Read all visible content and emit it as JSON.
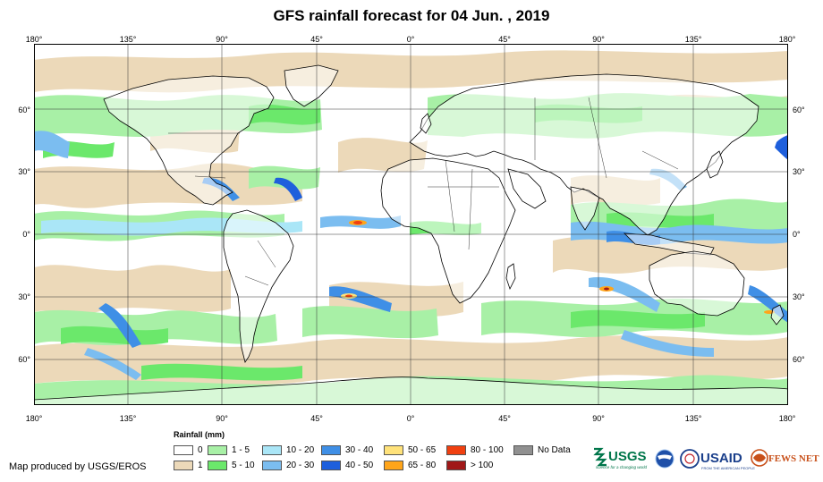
{
  "title": "GFS rainfall forecast for 04 Jun. , 2019",
  "axis": {
    "lon_labels": [
      "180°",
      "135°",
      "90°",
      "45°",
      "0°",
      "45°",
      "90°",
      "135°",
      "180°"
    ],
    "lat_labels": [
      "60°",
      "30°",
      "0°",
      "30°",
      "60°"
    ]
  },
  "legend": {
    "title": "Rainfall (mm)",
    "items": [
      {
        "label": "0",
        "color": "#ffffff"
      },
      {
        "label": "1",
        "color": "#ecd9b9"
      },
      {
        "label": "1 - 5",
        "color": "#a8f0a6"
      },
      {
        "label": "5 - 10",
        "color": "#6be86b"
      },
      {
        "label": "10 - 20",
        "color": "#aae6f7"
      },
      {
        "label": "20 - 30",
        "color": "#7bbdf0"
      },
      {
        "label": "30 - 40",
        "color": "#3f8fe6"
      },
      {
        "label": "40 - 50",
        "color": "#1e5fdc"
      },
      {
        "label": "50 - 65",
        "color": "#ffe27a"
      },
      {
        "label": "65 - 80",
        "color": "#ffa51a"
      },
      {
        "label": "80 - 100",
        "color": "#f04010"
      },
      {
        "label": "> 100",
        "color": "#a01818"
      },
      {
        "label": "No Data",
        "color": "#909090"
      }
    ]
  },
  "credit": "Map produced by USGS/EROS",
  "logos": {
    "usgs": "USGS",
    "usgs_tagline": "science for a changing world",
    "usaid": "USAID",
    "usaid_tagline": "FROM THE AMERICAN PEOPLE",
    "fews": "FEWS NET"
  }
}
